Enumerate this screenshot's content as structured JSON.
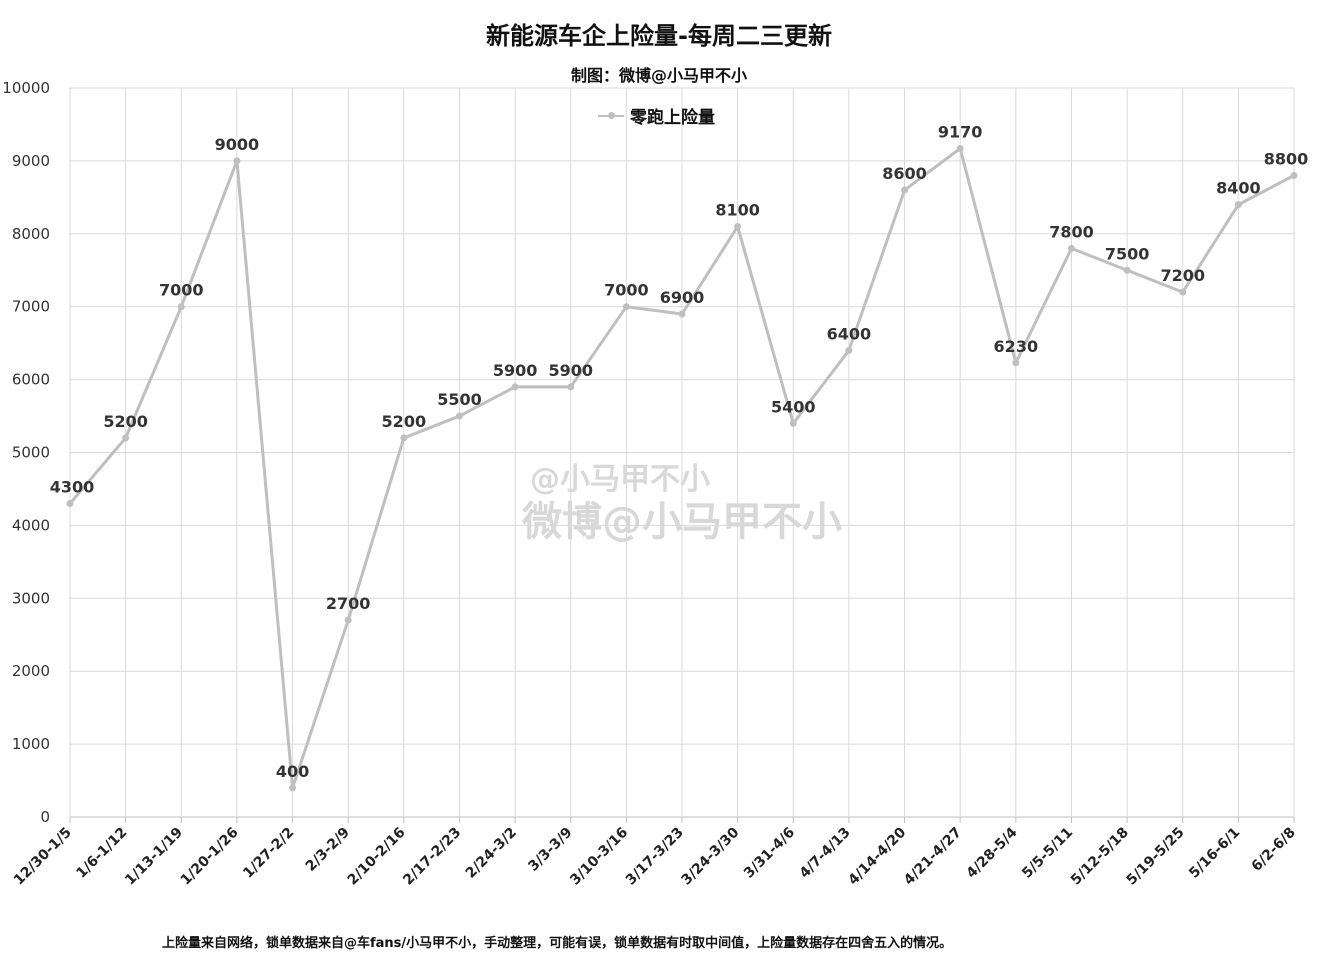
{
  "chart_data": {
    "type": "line",
    "title": "新能源车企上险量-每周二三更新",
    "subtitle": "制图：微博@小马甲不小",
    "categories": [
      "12/30-1/5",
      "1/6-1/12",
      "1/13-1/19",
      "1/20-1/26",
      "1/27-2/2",
      "2/3-2/9",
      "2/10-2/16",
      "2/17-2/23",
      "2/24-3/2",
      "3/3-3/9",
      "3/10-3/16",
      "3/17-3/23",
      "3/24-3/30",
      "3/31-4/6",
      "4/7-4/13",
      "4/14-4/20",
      "4/21-4/27",
      "4/28-5/4",
      "5/5-5/11",
      "5/12-5/18",
      "5/19-5/25",
      "5/16-6/1",
      "6/2-6/8"
    ],
    "series": [
      {
        "name": "零跑上险量",
        "values": [
          4300,
          5200,
          7000,
          9000,
          400,
          2700,
          5200,
          5500,
          5900,
          5900,
          7000,
          6900,
          8100,
          5400,
          6400,
          8600,
          9170,
          6230,
          7800,
          7500,
          7200,
          8400,
          8800
        ]
      }
    ],
    "ylim": [
      0,
      10000
    ],
    "yticks": [
      0,
      1000,
      2000,
      3000,
      4000,
      5000,
      6000,
      7000,
      8000,
      9000,
      10000
    ],
    "grid": true,
    "legend_position": "top-center",
    "line_color": "#bfbfbf"
  },
  "footnote": "上险量来自网络，锁单数据来自@车fans/小马甲不小，手动整理，可能有误，锁单数据有时取中间值，上险量数据存在四舍五入的情况。",
  "watermark": {
    "line1": "@小马甲不小",
    "line2": "微博@小马甲不小"
  }
}
